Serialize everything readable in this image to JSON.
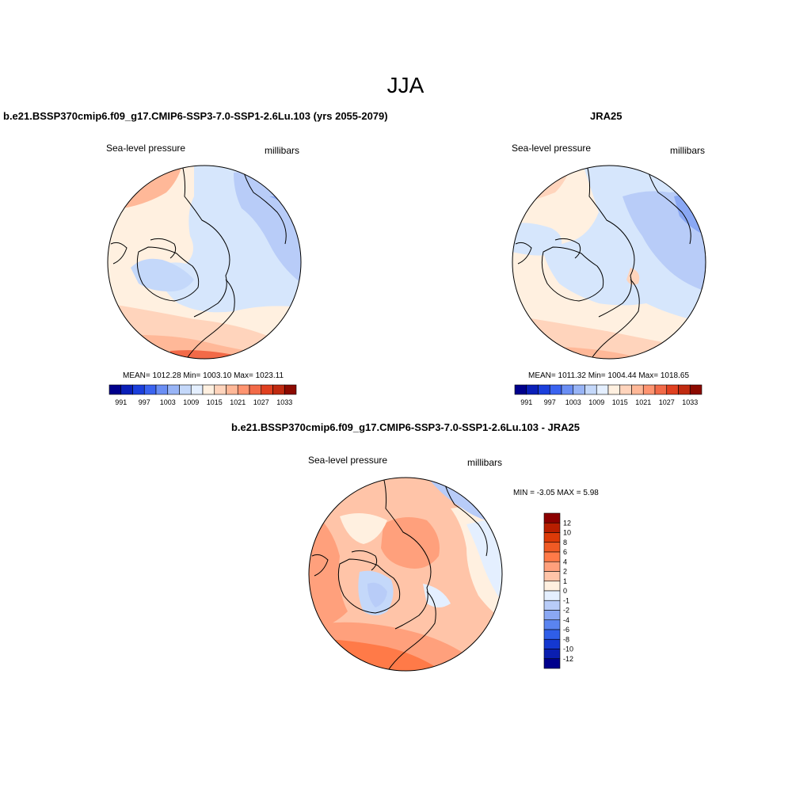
{
  "page": {
    "title": "JJA"
  },
  "panels": [
    {
      "title": "b.e21.BSSP370cmip6.f09_g17.CMIP6-SSP3-7.0-SSP1-2.6Lu.103 (yrs 2055-2079)",
      "variable": "Sea-level pressure",
      "units": "millibars",
      "stats": "MEAN= 1012.28  Min= 1003.10  Max= 1023.11"
    },
    {
      "title": "JRA25",
      "variable": "Sea-level pressure",
      "units": "millibars",
      "stats": "MEAN= 1011.32  Min= 1004.44  Max= 1018.65"
    },
    {
      "title": "b.e21.BSSP370cmip6.f09_g17.CMIP6-SSP3-7.0-SSP1-2.6Lu.103 - JRA25",
      "variable": "Sea-level pressure",
      "units": "millibars",
      "stats": "MIN =  -3.05 MAX =   5.98"
    }
  ],
  "abs_colorbar": {
    "colors": [
      "#00008c",
      "#0a1fb8",
      "#1b3fdc",
      "#3a63f0",
      "#6a8ef4",
      "#98b4f6",
      "#c4d8fa",
      "#e4efff",
      "#fff0e0",
      "#ffd4bc",
      "#ffb898",
      "#ff9470",
      "#f26a48",
      "#e04020",
      "#c02a10",
      "#8c0a00"
    ],
    "labels": [
      "991",
      "997",
      "1003",
      "1009",
      "1015",
      "1021",
      "1027",
      "1033"
    ]
  },
  "diff_colorbar": {
    "colors": [
      "#8c0000",
      "#b81e00",
      "#dc3a08",
      "#f05a24",
      "#ff7a48",
      "#ffa07c",
      "#ffc4a8",
      "#fff0e0",
      "#e4efff",
      "#b8ccf8",
      "#8aa8f4",
      "#5a84f0",
      "#2f5ee8",
      "#1438d0",
      "#0a1eb0",
      "#00008c"
    ],
    "labels": [
      "12",
      "10",
      "8",
      "6",
      "4",
      "2",
      "1",
      "0",
      "-1",
      "-2",
      "-4",
      "-6",
      "-8",
      "-10",
      "-12"
    ]
  }
}
